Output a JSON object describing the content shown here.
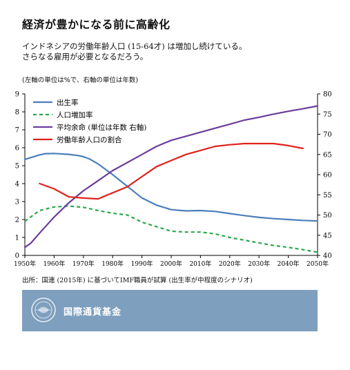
{
  "title": "経済が豊かになる前に高齢化",
  "subtitle_lines": [
    "インドネシアの労働年齢人口 (15-64才) は増加し続けている。",
    "さらなる雇用が必要となるだろう。"
  ],
  "axis_note": "(左軸の単位は%で、右軸の単位は年数)",
  "source": "出所：国連 (2015年) に基づいてIMF職員が試算 (出生率が中程度のシナリオ)",
  "footer": {
    "org_name": "国際通貨基金",
    "logo_icon": "imf-seal-icon",
    "background": "#7e9fbe"
  },
  "chart_data": {
    "type": "line",
    "x_ticks": [
      "1950年",
      "1960年",
      "1970年",
      "1980年",
      "1990年",
      "2000年",
      "2010年",
      "2020年",
      "2030年",
      "2040年",
      "2050年"
    ],
    "xlim": [
      1950,
      2050
    ],
    "ylim_left": [
      0,
      9
    ],
    "ylim_right": [
      40,
      80
    ],
    "y_ticks_left": [
      "0",
      "1",
      "2",
      "3",
      "4",
      "5",
      "6",
      "7",
      "8",
      "9"
    ],
    "y_ticks_right": [
      "40",
      "45",
      "50",
      "55",
      "60",
      "65",
      "70",
      "75",
      "80"
    ],
    "grid": false,
    "legend_position": "top-left",
    "series": [
      {
        "name": "出生率",
        "axis": "left",
        "color": "#4a7ebb",
        "style": "solid",
        "x": [
          1950,
          1952,
          1955,
          1957,
          1960,
          1965,
          1968,
          1970,
          1972,
          1975,
          1980,
          1985,
          1990,
          1995,
          2000,
          2005,
          2010,
          2015,
          2020,
          2025,
          2030,
          2035,
          2040,
          2045,
          2050
        ],
        "y": [
          5.35,
          5.45,
          5.6,
          5.67,
          5.68,
          5.63,
          5.57,
          5.5,
          5.38,
          5.1,
          4.5,
          3.85,
          3.2,
          2.8,
          2.55,
          2.48,
          2.5,
          2.45,
          2.33,
          2.22,
          2.12,
          2.05,
          2.0,
          1.95,
          1.92
        ]
      },
      {
        "name": "人口増加率",
        "axis": "left",
        "color": "#2aa84a",
        "style": "dashed",
        "x": [
          1950,
          1955,
          1960,
          1965,
          1970,
          1975,
          1980,
          1985,
          1990,
          1995,
          2000,
          2005,
          2010,
          2015,
          2020,
          2025,
          2030,
          2035,
          2040,
          2045,
          2050
        ],
        "y": [
          1.9,
          2.5,
          2.7,
          2.75,
          2.68,
          2.5,
          2.35,
          2.25,
          1.85,
          1.6,
          1.35,
          1.3,
          1.3,
          1.2,
          1.0,
          0.85,
          0.7,
          0.55,
          0.45,
          0.32,
          0.18
        ]
      },
      {
        "name": "平均余命 (単位は年数 右軸)",
        "axis": "right",
        "color": "#6a3d9a",
        "style": "solid",
        "x": [
          1950,
          1952,
          1955,
          1960,
          1965,
          1970,
          1975,
          1980,
          1985,
          1990,
          1995,
          2000,
          2005,
          2010,
          2015,
          2020,
          2025,
          2030,
          2035,
          2040,
          2045,
          2050
        ],
        "y": [
          42,
          43,
          45.5,
          49.5,
          53,
          56,
          58.5,
          61,
          63,
          65,
          67,
          68.5,
          69.5,
          70.5,
          71.5,
          72.5,
          73.5,
          74.2,
          75,
          75.7,
          76.3,
          77
        ]
      },
      {
        "name": "労働年齢人口の割合",
        "axis": "right",
        "color": "#e0211b",
        "style": "solid",
        "x": [
          1955,
          1960,
          1965,
          1970,
          1975,
          1980,
          1985,
          1990,
          1995,
          2000,
          2005,
          2010,
          2015,
          2020,
          2025,
          2030,
          2035,
          2040,
          2045
        ],
        "y": [
          57.8,
          56.5,
          54.5,
          54.2,
          54.0,
          55.5,
          57,
          59.5,
          62,
          63.5,
          65,
          66,
          67,
          67.4,
          67.7,
          67.7,
          67.7,
          67.2,
          66.5
        ]
      }
    ]
  }
}
